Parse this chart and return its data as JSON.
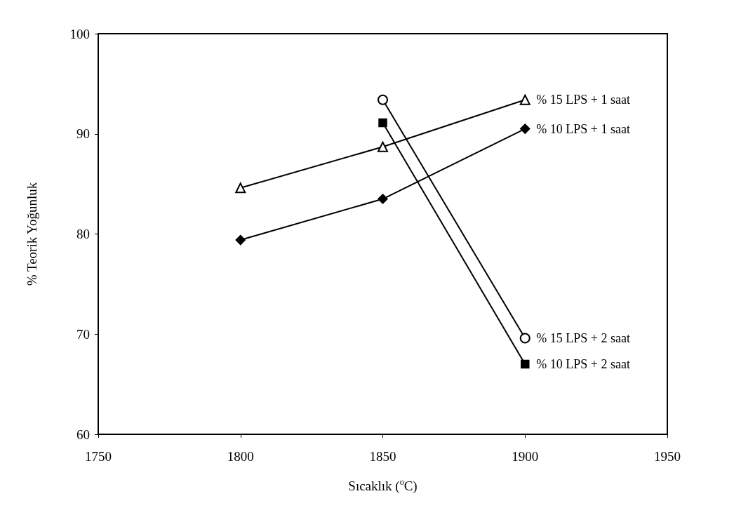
{
  "chart_data": {
    "type": "line",
    "xlabel": "Sıcaklık ($^{o}$C)",
    "ylabel": "% Teorik Yoğunluk",
    "xlim": [
      1750,
      1950
    ],
    "xticks": [
      1750,
      1800,
      1850,
      1900,
      1950
    ],
    "ylim": [
      60,
      100
    ],
    "yticks": [
      60,
      70,
      80,
      90,
      100
    ],
    "grid": false,
    "legend": false,
    "series": [
      {
        "name": "% 15 LPS + 1 saat",
        "color": "#000000",
        "marker": "triangle",
        "x": [
          1800,
          1850,
          1900
        ],
        "values": [
          84.6,
          88.7,
          93.4
        ]
      },
      {
        "name": "% 10 LPS + 1 saat",
        "color": "#000000",
        "marker": "diamond",
        "x": [
          1800,
          1850,
          1900
        ],
        "values": [
          79.4,
          83.5,
          90.5
        ]
      },
      {
        "name": "% 15 LPS + 2 saat",
        "color": "#000000",
        "marker": "circle",
        "x": [
          1850,
          1900
        ],
        "values": [
          93.4,
          69.6
        ]
      },
      {
        "name": "% 10 LPS + 2 saat",
        "color": "#000000",
        "marker": "square",
        "x": [
          1850,
          1900
        ],
        "values": [
          91.1,
          67.0
        ]
      }
    ]
  }
}
